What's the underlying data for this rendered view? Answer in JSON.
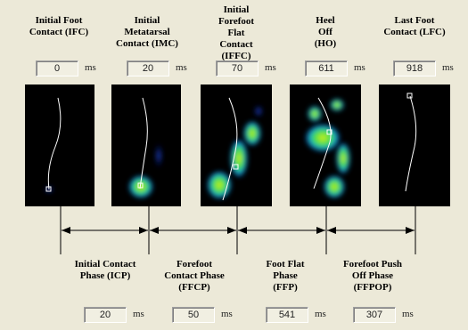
{
  "events": [
    {
      "label": "Initial Foot\nContact (IFC)",
      "value": "0",
      "unit": "ms"
    },
    {
      "label": "Initial\nMetatarsal\nContact (IMC)",
      "value": "20",
      "unit": "ms"
    },
    {
      "label": "Initial\nForefoot\nFlat\nContact\n(IFFC)",
      "value": "70",
      "unit": "ms"
    },
    {
      "label": "Heel\nOff\n(HO)",
      "value": "611",
      "unit": "ms"
    },
    {
      "label": "Last Foot\nContact (LFC)",
      "value": "918",
      "unit": "ms"
    }
  ],
  "phases": [
    {
      "label": "Initial Contact\nPhase (ICP)",
      "value": "20",
      "unit": "ms"
    },
    {
      "label": "Forefoot\nContact Phase\n(FFCP)",
      "value": "50",
      "unit": "ms"
    },
    {
      "label": "Foot Flat\nPhase\n(FFP)",
      "value": "541",
      "unit": "ms"
    },
    {
      "label": "Forefoot Push\nOff Phase\n(FFPOP)",
      "value": "307",
      "unit": "ms"
    }
  ]
}
